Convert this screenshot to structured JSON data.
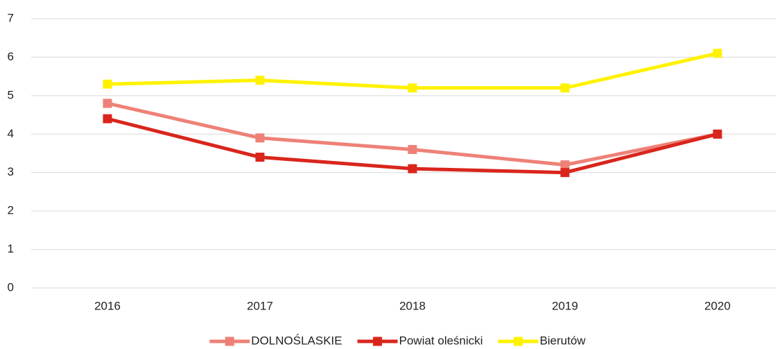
{
  "chart_data": {
    "type": "line",
    "categories": [
      "2016",
      "2017",
      "2018",
      "2019",
      "2020"
    ],
    "series": [
      {
        "name": "DOLNOŚLASKIE",
        "color": "#ee8177",
        "values": [
          4.8,
          3.9,
          3.6,
          3.2,
          4.0
        ]
      },
      {
        "name": "Powiat oleśnicki",
        "color": "#d9261c",
        "values": [
          4.4,
          3.4,
          3.1,
          3.0,
          4.0
        ]
      },
      {
        "name": "Bierutów",
        "color": "#fff200",
        "values": [
          5.3,
          5.4,
          5.2,
          5.2,
          6.1
        ]
      }
    ],
    "ylim": [
      0,
      7
    ],
    "yticks": [
      0,
      1,
      2,
      3,
      4,
      5,
      6,
      7
    ],
    "grid": true,
    "legend": "bottom"
  }
}
